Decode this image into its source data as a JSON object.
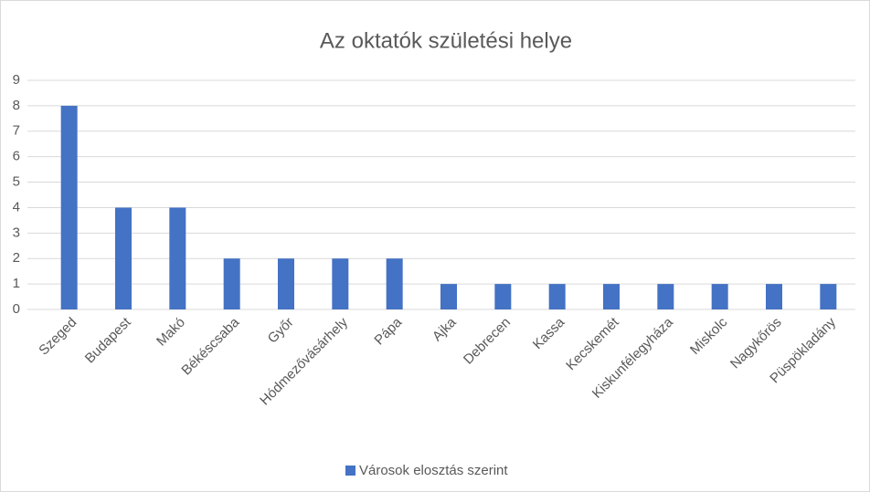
{
  "chart_data": {
    "type": "bar",
    "title": "Az oktatók születési helye",
    "categories": [
      "Szeged",
      "Budapest",
      "Makó",
      "Békéscsaba",
      "Győr",
      "Hódmezővásárhely",
      "Pápa",
      "Ajka",
      "Debrecen",
      "Kassa",
      "Kecskemét",
      "Kiskunfélegyháza",
      "Miskolc",
      "Nagykőrös",
      "Püspökladány"
    ],
    "series": [
      {
        "name": "Városok elosztás szerint",
        "color": "#4472c4",
        "values": [
          8,
          4,
          4,
          2,
          2,
          2,
          2,
          1,
          1,
          1,
          1,
          1,
          1,
          1,
          1
        ]
      }
    ],
    "ylim": [
      0,
      9
    ],
    "yticks": [
      0,
      1,
      2,
      3,
      4,
      5,
      6,
      7,
      8,
      9
    ],
    "grid": true,
    "legend": "bottom"
  }
}
